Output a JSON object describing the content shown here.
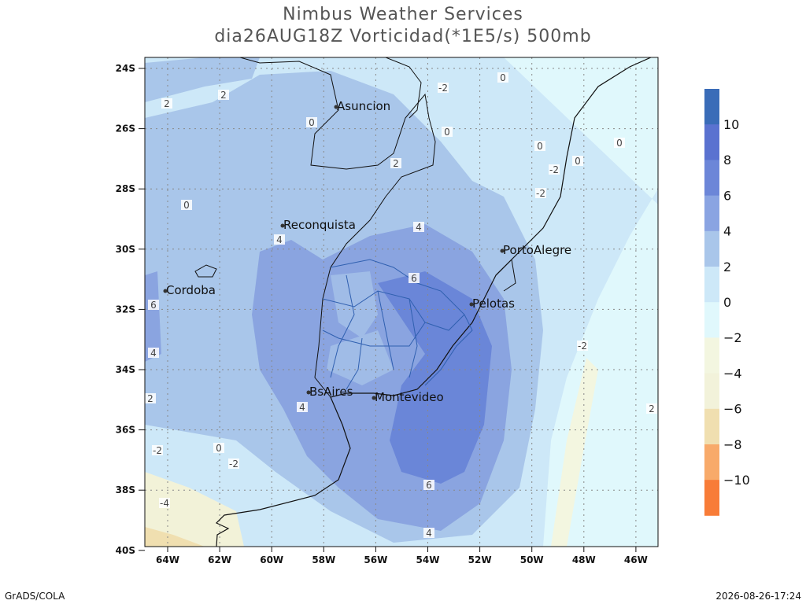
{
  "title": [
    "Nimbus Weather Services",
    "dia26AUG18Z Vorticidad(*1E5/s) 500mb"
  ],
  "lat_labels": [
    "24S",
    "26S",
    "28S",
    "30S",
    "32S",
    "34S",
    "36S",
    "38S",
    "40S"
  ],
  "lon_labels": [
    "64W",
    "62W",
    "60W",
    "58W",
    "56W",
    "54W",
    "52W",
    "50W",
    "48W",
    "46W"
  ],
  "cities": [
    "Asuncion",
    "Reconquista",
    "Cordoba",
    "PortoAlegre",
    "Pelotas",
    "BsAires",
    "Montevideo"
  ],
  "colorbar": {
    "labels": [
      "10",
      "8",
      "6",
      "4",
      "2",
      "0",
      "−2",
      "−4",
      "−6",
      "−8",
      "−10"
    ]
  },
  "contour_labels": [
    "2",
    "2",
    "0",
    "-2",
    "0",
    "0",
    "0",
    "-2",
    "0",
    "-2",
    "0",
    "2",
    "0",
    "4",
    "4",
    "6",
    "6",
    "4",
    "2",
    "-2",
    "0",
    "-2",
    "-4",
    "4",
    "6",
    "4",
    "2",
    "-2"
  ],
  "footer": {
    "left": "GrADS/COLA",
    "right": "2026-08-26-17:24"
  }
}
